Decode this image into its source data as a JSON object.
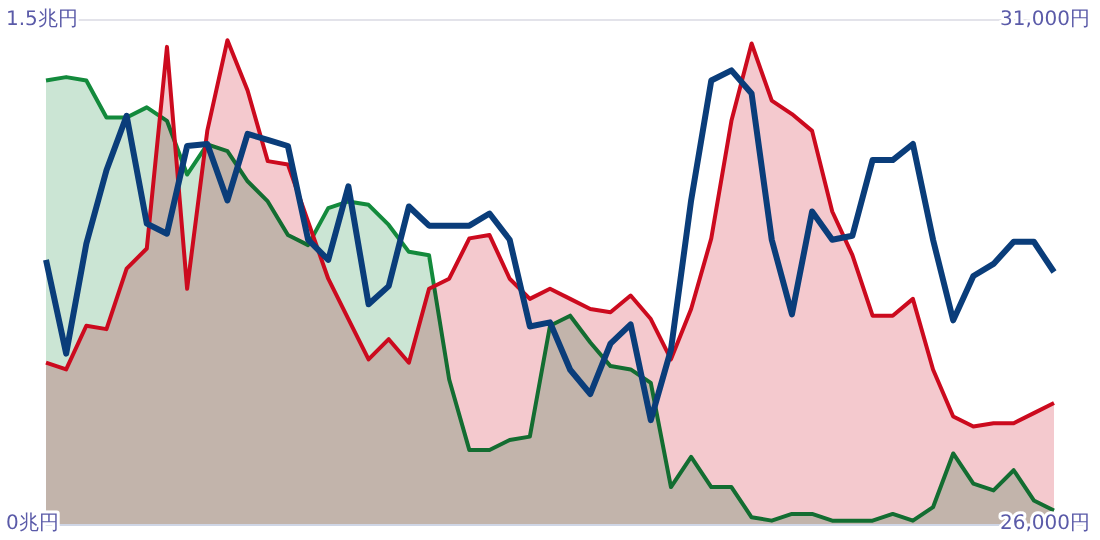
{
  "chart_data": {
    "type": "area",
    "categories": [
      null,
      null,
      null,
      null,
      null,
      null,
      null,
      null,
      null,
      null,
      null,
      null,
      null,
      null,
      null,
      null,
      null,
      null,
      null,
      null,
      null,
      null,
      null,
      null,
      null,
      null,
      null,
      null,
      null,
      null,
      null,
      null,
      null,
      null,
      null,
      null,
      null,
      null,
      null,
      null,
      null,
      null,
      null,
      null,
      null,
      null,
      null,
      null,
      null,
      null,
      null
    ],
    "series": [
      {
        "color": "#138a3c",
        "values": [
          1.32,
          1.33,
          1.32,
          1.21,
          1.21,
          1.24,
          1.2,
          1.04,
          1.13,
          1.11,
          1.02,
          0.96,
          0.86,
          0.83,
          0.94,
          0.96,
          0.95,
          0.89,
          0.81,
          0.8,
          0.43,
          0.22,
          0.22,
          0.25,
          0.26,
          0.59,
          0.62,
          0.54,
          0.47,
          0.46,
          0.42,
          0.11,
          0.2,
          0.11,
          0.11,
          0.02,
          0.01,
          0.03,
          0.03,
          0.01,
          0.01,
          0.01,
          0.03,
          0.01,
          0.05,
          0.21,
          0.12,
          0.1,
          0.16,
          0.07,
          0.04
        ]
      },
      {
        "color": "#cc0a1e",
        "values": [
          0.48,
          0.46,
          0.59,
          0.58,
          0.76,
          0.82,
          1.42,
          0.7,
          1.17,
          1.44,
          1.29,
          1.08,
          1.07,
          0.9,
          0.73,
          0.61,
          0.49,
          0.55,
          0.48,
          0.7,
          0.73,
          0.85,
          0.86,
          0.73,
          0.67,
          0.7,
          0.67,
          0.64,
          0.63,
          0.68,
          0.61,
          0.49,
          0.64,
          0.85,
          1.2,
          1.43,
          1.26,
          1.22,
          1.17,
          0.93,
          0.8,
          0.62,
          0.62,
          0.67,
          0.46,
          0.32,
          0.29,
          0.3,
          0.3,
          0.33,
          0.36
        ]
      },
      {
        "type": "line",
        "axis": "y2",
        "color": "#0a3d7a",
        "values": [
          28620,
          27690,
          28780,
          29510,
          30050,
          28980,
          28880,
          29750,
          29770,
          29210,
          29870,
          29810,
          29750,
          28820,
          28620,
          29350,
          28180,
          28360,
          29150,
          28960,
          28960,
          28960,
          29080,
          28820,
          27960,
          28000,
          27530,
          27290,
          27790,
          27980,
          27030,
          27730,
          29210,
          30400,
          30500,
          30270,
          28820,
          28080,
          29100,
          28820,
          28860,
          29610,
          29610,
          29770,
          28820,
          28020,
          28460,
          28580,
          28800,
          28800,
          28500
        ]
      }
    ],
    "ylim": [
      0,
      1.5
    ],
    "yticks": [
      {
        "value": 0,
        "label": "0兆円"
      },
      {
        "value": 1.5,
        "label": "1.5兆円"
      }
    ],
    "y2lim": [
      26000,
      31000
    ],
    "y2ticks": [
      {
        "value": 26000,
        "label": "26,000円"
      },
      {
        "value": 31000,
        "label": "31,000円"
      }
    ],
    "grid": "y"
  }
}
